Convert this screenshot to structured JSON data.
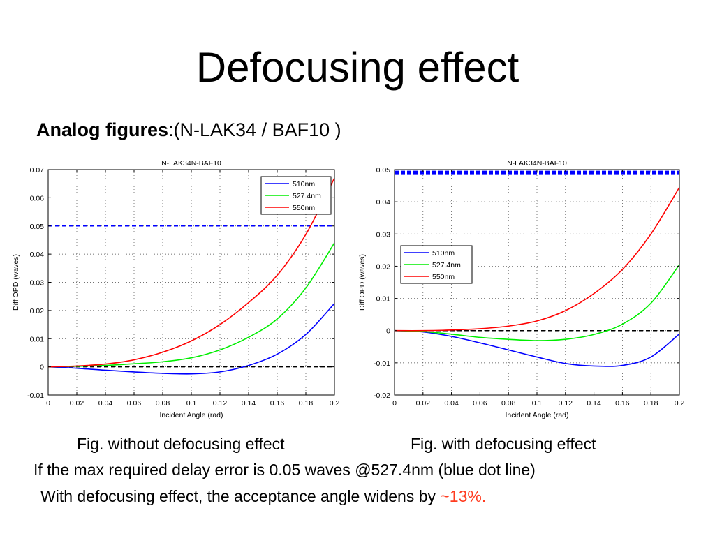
{
  "slide": {
    "title": "Defocusing effect",
    "subtitle_bold": "Analog figures",
    "subtitle_rest": ":(N-LAK34 / BAF10 )",
    "caption_left": "Fig. without defocusing effect",
    "caption_right": "Fig. with defocusing effect",
    "note_1": "If the max required delay error is 0.05 waves @527.4nm (blue dot line)",
    "note_2_text": "With defocusing effect,  the acceptance angle widens by ",
    "note_2_highlight": "~13%.",
    "highlight_color": "#ff3b1f"
  },
  "chart_data": [
    {
      "type": "line",
      "title": "N-LAK34N-BAF10",
      "xlabel": "Incident Angle (rad)",
      "ylabel": "Diff OPD (waves)",
      "xlim": [
        0,
        0.2
      ],
      "ylim": [
        -0.01,
        0.07
      ],
      "xticks": [
        0,
        0.02,
        0.04,
        0.06,
        0.08,
        0.1,
        0.12,
        0.14,
        0.16,
        0.18,
        0.2
      ],
      "xtick_labels": [
        "0",
        "0.02",
        "0.04",
        "0.06",
        "0.08",
        "0.1",
        "0.12",
        "0.14",
        "0.16",
        "0.18",
        "0.2"
      ],
      "yticks": [
        -0.01,
        0,
        0.01,
        0.02,
        0.03,
        0.04,
        0.05,
        0.06,
        0.07
      ],
      "ytick_labels": [
        "-0.01",
        "0",
        "0.01",
        "0.02",
        "0.03",
        "0.04",
        "0.05",
        "0.06",
        "0.07"
      ],
      "grid": true,
      "legend_position": "top-right",
      "x": [
        0,
        0.02,
        0.04,
        0.06,
        0.08,
        0.1,
        0.12,
        0.14,
        0.16,
        0.18,
        0.2
      ],
      "series": [
        {
          "name": "510nm",
          "color": "#0000ff",
          "values": [
            0,
            -0.0005,
            -0.0012,
            -0.0018,
            -0.0023,
            -0.0025,
            -0.0018,
            0.0005,
            0.0045,
            0.0115,
            0.0225
          ]
        },
        {
          "name": "527.4nm",
          "color": "#00ee00",
          "values": [
            0,
            0.0002,
            0.0005,
            0.0011,
            0.0018,
            0.0032,
            0.006,
            0.0105,
            0.017,
            0.028,
            0.044
          ]
        },
        {
          "name": "550nm",
          "color": "#ff0000",
          "values": [
            0,
            0.0003,
            0.001,
            0.0025,
            0.0052,
            0.0092,
            0.015,
            0.0228,
            0.0325,
            0.047,
            0.067
          ]
        }
      ],
      "reference_lines": [
        {
          "y": 0.05,
          "color": "#0000ff",
          "style": "dashed"
        },
        {
          "y": 0,
          "color": "#000000",
          "style": "dashed"
        }
      ]
    },
    {
      "type": "line",
      "title": "N-LAK34N-BAF10",
      "xlabel": "Incident Angle (rad)",
      "ylabel": "Diff OPD (waves)",
      "xlim": [
        0,
        0.2
      ],
      "ylim": [
        -0.02,
        0.05
      ],
      "xticks": [
        0,
        0.02,
        0.04,
        0.06,
        0.08,
        0.1,
        0.12,
        0.14,
        0.16,
        0.18,
        0.2
      ],
      "xtick_labels": [
        "0",
        "0.02",
        "0.04",
        "0.06",
        "0.08",
        "0.1",
        "0.12",
        "0.14",
        "0.16",
        "0.18",
        "0.2"
      ],
      "yticks": [
        -0.02,
        -0.01,
        0,
        0.01,
        0.02,
        0.03,
        0.04,
        0.05
      ],
      "ytick_labels": [
        "-0.02",
        "-0.01",
        "0",
        "0.01",
        "0.02",
        "0.03",
        "0.04",
        "0.05"
      ],
      "grid": true,
      "legend_position": "middle-left",
      "x": [
        0,
        0.02,
        0.04,
        0.06,
        0.08,
        0.1,
        0.12,
        0.14,
        0.16,
        0.18,
        0.2
      ],
      "series": [
        {
          "name": "510nm",
          "color": "#0000ff",
          "values": [
            0,
            -0.0004,
            -0.0018,
            -0.0038,
            -0.006,
            -0.0082,
            -0.0102,
            -0.011,
            -0.0108,
            -0.0082,
            -0.001
          ]
        },
        {
          "name": "527.4nm",
          "color": "#00ee00",
          "values": [
            0,
            -0.0003,
            -0.0011,
            -0.0021,
            -0.0027,
            -0.0031,
            -0.0027,
            -0.0012,
            0.002,
            0.0085,
            0.0205
          ]
        },
        {
          "name": "550nm",
          "color": "#ff0000",
          "values": [
            0,
            0,
            0.0002,
            0.0006,
            0.0014,
            0.003,
            0.0062,
            0.0115,
            0.019,
            0.03,
            0.0445
          ]
        }
      ],
      "reference_lines": [
        {
          "y": 0.049,
          "color": "#0000ff",
          "style": "thick-dotted"
        },
        {
          "y": 0,
          "color": "#000000",
          "style": "dashed"
        }
      ]
    }
  ]
}
